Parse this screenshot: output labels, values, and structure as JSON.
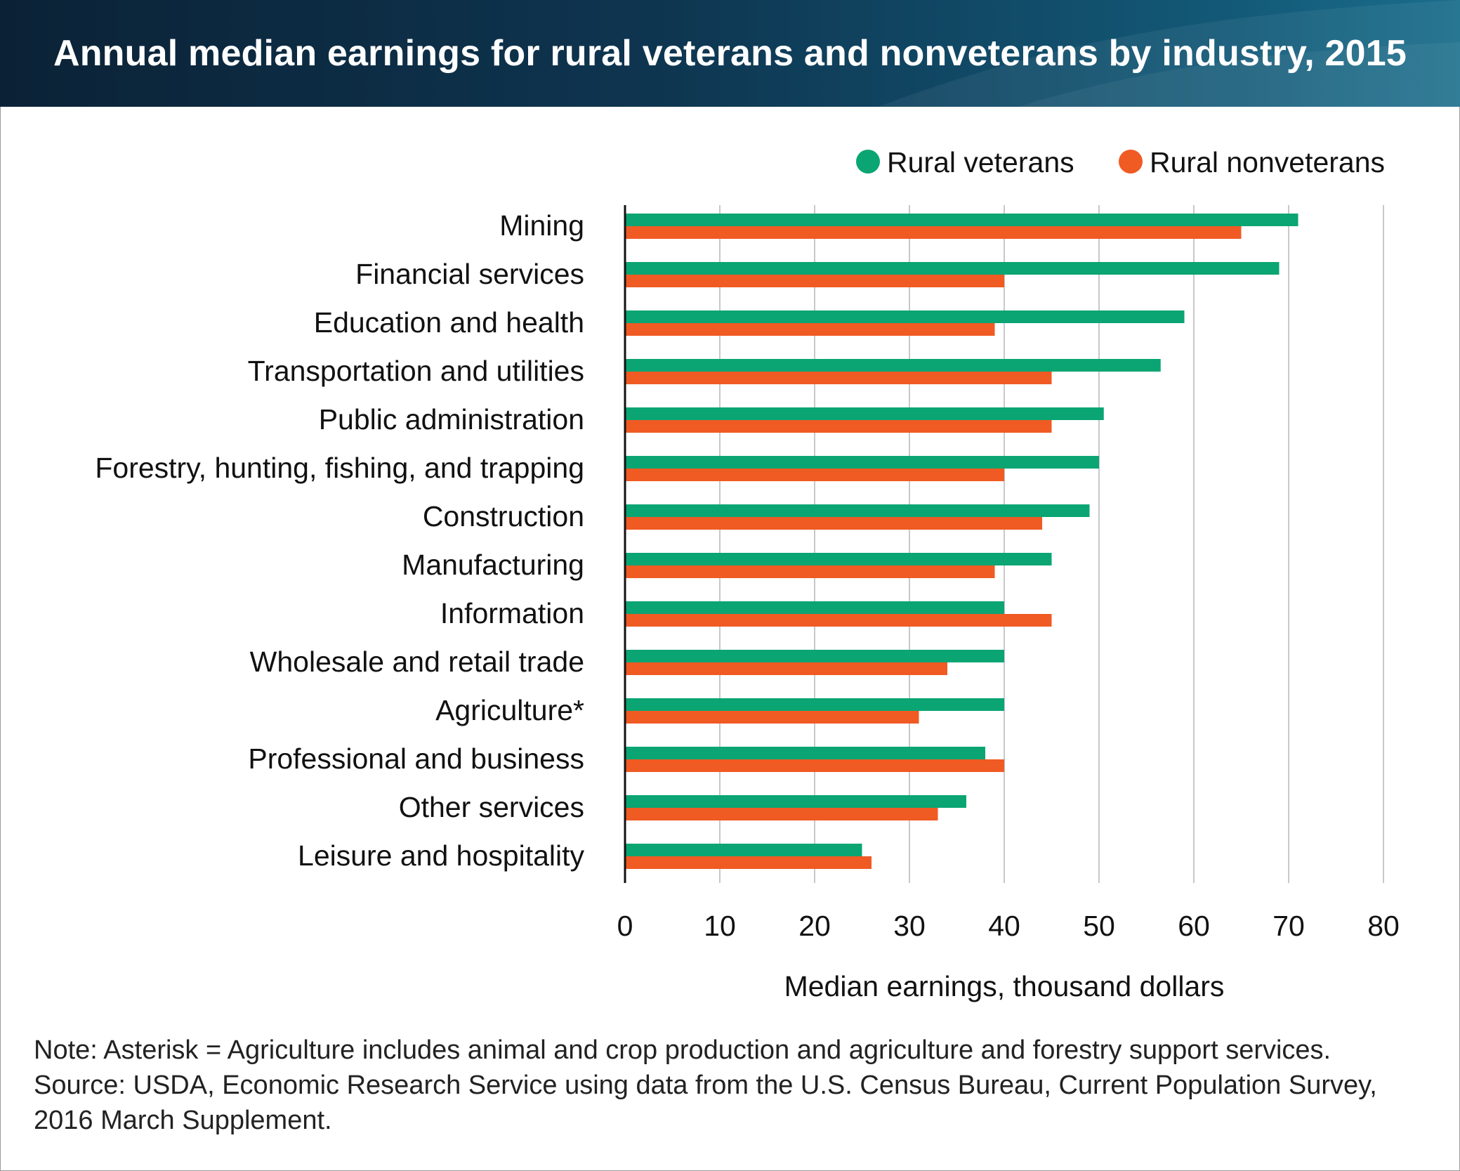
{
  "header": {
    "title": "Annual median earnings for rural veterans and nonveterans by industry, 2015"
  },
  "colors": {
    "veterans": "#0aa572",
    "nonveterans": "#f05a23",
    "grid": "#c8c8c8",
    "axis": "#111111"
  },
  "chart_data": {
    "type": "bar",
    "orientation": "horizontal",
    "categories": [
      "Mining",
      "Financial services",
      "Education and health",
      "Transportation and utilities",
      "Public administration",
      "Forestry, hunting, fishing, and trapping",
      "Construction",
      "Manufacturing",
      "Information",
      "Wholesale and retail trade",
      "Agriculture*",
      "Professional and business",
      "Other services",
      "Leisure and hospitality"
    ],
    "series": [
      {
        "name": "Rural veterans",
        "values": [
          71,
          69,
          59,
          56.5,
          50.5,
          50,
          49,
          45,
          40,
          40,
          40,
          38,
          36,
          25
        ]
      },
      {
        "name": "Rural nonveterans",
        "values": [
          65,
          40,
          39,
          45,
          45,
          40,
          44,
          39,
          45,
          34,
          31,
          40,
          33,
          26
        ]
      }
    ],
    "xlabel": "Median earnings, thousand dollars",
    "xlim": [
      0,
      80
    ],
    "xticks": [
      0,
      10,
      20,
      30,
      40,
      50,
      60,
      70,
      80
    ],
    "grid": true,
    "legend_position": "top-right"
  },
  "notes": {
    "line1": "Note: Asterisk = Agriculture includes animal and crop production and agriculture and forestry support services.",
    "line2": "Source: USDA, Economic Research Service using data from the U.S. Census Bureau, Current Population Survey,",
    "line3": "2016 March Supplement."
  }
}
